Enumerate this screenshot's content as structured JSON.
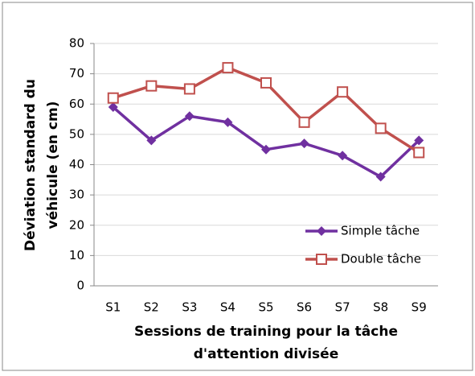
{
  "chart_data": {
    "type": "line",
    "categories": [
      "S1",
      "S2",
      "S3",
      "S4",
      "S5",
      "S6",
      "S7",
      "S8",
      "S9"
    ],
    "series": [
      {
        "name": "Simple tâche",
        "color": "#7030a0",
        "marker": "diamond",
        "values": [
          59,
          48,
          56,
          54,
          45,
          47,
          43,
          36,
          48
        ]
      },
      {
        "name": "Double tâche",
        "color": "#c0504d",
        "marker": "square",
        "values": [
          62,
          66,
          65,
          72,
          67,
          54,
          64,
          52,
          44
        ]
      }
    ],
    "ylim": [
      0,
      80
    ],
    "yticks": [
      0,
      10,
      20,
      30,
      40,
      50,
      60,
      70,
      80
    ],
    "grid": true,
    "xlabel": [
      "Sessions de training pour la tâche",
      "d'attention divisée"
    ],
    "ylabel": [
      "Déviation standard du",
      "véhicule (en cm)"
    ],
    "legend": "right"
  }
}
